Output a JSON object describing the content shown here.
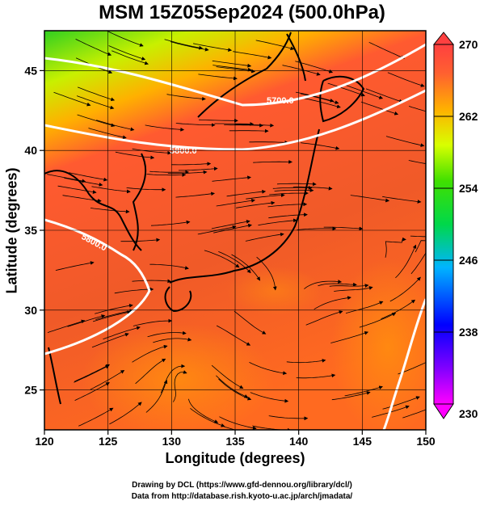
{
  "title": "MSM 15Z05Sep2024 (500.0hPa)",
  "map": {
    "xlabel": "Longitude (degrees)",
    "ylabel": "Latitude  (degrees)",
    "lon_range": [
      120,
      150
    ],
    "lat_range": [
      22.5,
      47.5
    ],
    "lon_ticks": [
      "120",
      "125",
      "130",
      "135",
      "140",
      "145",
      "150"
    ],
    "lat_ticks": [
      "25",
      "30",
      "35",
      "40",
      "45"
    ],
    "contour_labels": [
      "5700.0",
      "5800.0",
      "5800.0"
    ],
    "colorbar": {
      "min": 230,
      "max": 270,
      "tick_labels": [
        "270",
        "262",
        "254",
        "246",
        "238",
        "230"
      ],
      "colors": [
        "#ff00ff",
        "#0000ff",
        "#00c8ff",
        "#00e600",
        "#d8ff00",
        "#ffa000",
        "#ff4040"
      ]
    }
  },
  "credits": {
    "line1": "Drawing by DCL (https://www.gfd-dennou.org/library/dcl/)",
    "line2": "Data from http://database.rish.kyoto-u.ac.jp/arch/jmadata/"
  }
}
